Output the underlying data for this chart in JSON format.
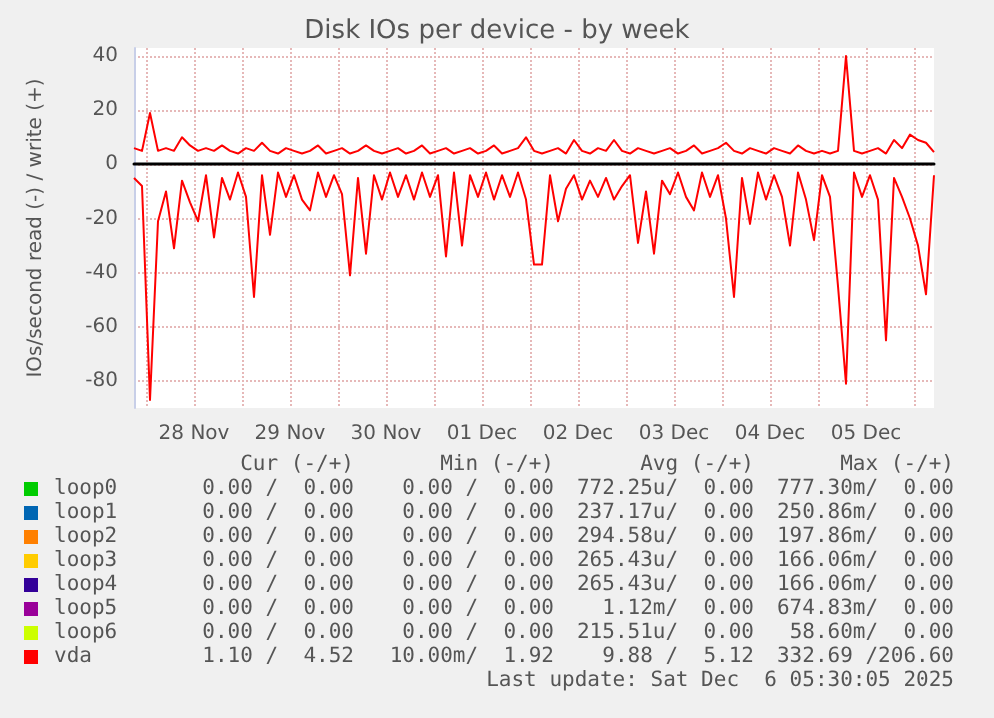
{
  "chart_data": {
    "type": "line",
    "title": "Disk IOs per device - by week",
    "ylabel": "IOs/second read (-) / write (+)",
    "x": [
      "2025-11-27T21:00",
      "2025-11-27T23:00",
      "2025-11-28T01:00",
      "2025-11-28T03:00",
      "2025-11-28T05:00",
      "2025-11-28T07:00",
      "2025-11-28T09:00",
      "2025-11-28T11:00",
      "2025-11-28T13:00",
      "2025-11-28T15:00",
      "2025-11-28T17:00",
      "2025-11-28T19:00",
      "2025-11-28T21:00",
      "2025-11-28T23:00",
      "2025-11-29T01:00",
      "2025-11-29T03:00",
      "2025-11-29T05:00",
      "2025-11-29T07:00",
      "2025-11-29T09:00",
      "2025-11-29T11:00",
      "2025-11-29T13:00",
      "2025-11-29T15:00",
      "2025-11-29T17:00",
      "2025-11-29T19:00",
      "2025-11-29T21:00",
      "2025-11-29T23:00",
      "2025-11-30T01:00",
      "2025-11-30T03:00",
      "2025-11-30T05:00",
      "2025-11-30T07:00",
      "2025-11-30T09:00",
      "2025-11-30T11:00",
      "2025-11-30T13:00",
      "2025-11-30T15:00",
      "2025-11-30T17:00",
      "2025-11-30T19:00",
      "2025-11-30T21:00",
      "2025-11-30T23:00",
      "2025-12-01T01:00",
      "2025-12-01T03:00",
      "2025-12-01T05:00",
      "2025-12-01T07:00",
      "2025-12-01T09:00",
      "2025-12-01T11:00",
      "2025-12-01T13:00",
      "2025-12-01T15:00",
      "2025-12-01T17:00",
      "2025-12-01T19:00",
      "2025-12-01T21:00",
      "2025-12-01T23:00",
      "2025-12-02T01:00",
      "2025-12-02T03:00",
      "2025-12-02T05:00",
      "2025-12-02T07:00",
      "2025-12-02T09:00",
      "2025-12-02T11:00",
      "2025-12-02T13:00",
      "2025-12-02T15:00",
      "2025-12-02T17:00",
      "2025-12-02T19:00",
      "2025-12-02T21:00",
      "2025-12-02T23:00",
      "2025-12-03T01:00",
      "2025-12-03T03:00",
      "2025-12-03T05:00",
      "2025-12-03T07:00",
      "2025-12-03T09:00",
      "2025-12-03T11:00",
      "2025-12-03T13:00",
      "2025-12-03T15:00",
      "2025-12-03T17:00",
      "2025-12-03T19:00",
      "2025-12-03T21:00",
      "2025-12-03T23:00",
      "2025-12-04T01:00",
      "2025-12-04T03:00",
      "2025-12-04T05:00",
      "2025-12-04T07:00",
      "2025-12-04T09:00",
      "2025-12-04T11:00",
      "2025-12-04T13:00",
      "2025-12-04T15:00",
      "2025-12-04T17:00",
      "2025-12-04T19:00",
      "2025-12-04T21:00",
      "2025-12-04T23:00",
      "2025-12-05T01:00",
      "2025-12-05T03:00",
      "2025-12-05T05:00",
      "2025-12-05T07:00",
      "2025-12-05T09:00",
      "2025-12-05T11:00",
      "2025-12-05T13:00",
      "2025-12-05T15:00",
      "2025-12-05T17:00",
      "2025-12-05T19:00",
      "2025-12-05T21:00",
      "2025-12-05T23:00",
      "2025-12-06T01:00",
      "2025-12-06T03:00",
      "2025-12-06T05:00"
    ],
    "series": [
      {
        "name": "loop0",
        "color": "#00cc00",
        "values": [
          null,
          null,
          null,
          null,
          null,
          null,
          null,
          null,
          null,
          null,
          null,
          null,
          null,
          null,
          null,
          null,
          null,
          null,
          null,
          null,
          null,
          null,
          null,
          null,
          null,
          null,
          null,
          null,
          null,
          null,
          null,
          null,
          null,
          null,
          null,
          null,
          null,
          null,
          null,
          null,
          null,
          null,
          null,
          null,
          null,
          null,
          null,
          null,
          null,
          null,
          null,
          null,
          null,
          null,
          null,
          null,
          null,
          null,
          null,
          null,
          null,
          null,
          null,
          null,
          null,
          null,
          null,
          null,
          null,
          null,
          null,
          null,
          null,
          null,
          null,
          null,
          null,
          null,
          null,
          null,
          null,
          null,
          null,
          null,
          null,
          null,
          null,
          null,
          null,
          null,
          null,
          null,
          null,
          null,
          null,
          null,
          null,
          null,
          null,
          null,
          null
        ]
      },
      {
        "name": "loop1",
        "color": "#0066b3",
        "values": [
          null,
          null,
          null,
          null,
          null,
          null,
          null,
          null,
          null,
          null,
          null,
          null,
          null,
          null,
          null,
          null,
          null,
          null,
          null,
          null,
          null,
          null,
          null,
          null,
          null,
          null,
          null,
          null,
          null,
          null,
          null,
          null,
          null,
          null,
          null,
          null,
          null,
          null,
          null,
          null,
          null,
          null,
          null,
          null,
          null,
          null,
          null,
          null,
          null,
          null,
          null,
          null,
          null,
          null,
          null,
          null,
          null,
          null,
          null,
          null,
          null,
          null,
          null,
          null,
          null,
          null,
          null,
          null,
          null,
          null,
          null,
          null,
          null,
          null,
          null,
          null,
          null,
          null,
          null,
          null,
          null,
          null,
          null,
          null,
          null,
          null,
          null,
          null,
          null,
          null,
          null,
          null,
          null,
          null,
          null,
          null,
          null,
          null,
          null,
          null,
          null
        ]
      },
      {
        "name": "loop2",
        "color": "#ff8000",
        "values": [
          null,
          null,
          null,
          null,
          null,
          null,
          null,
          null,
          null,
          null,
          null,
          null,
          null,
          null,
          null,
          null,
          null,
          null,
          null,
          null,
          null,
          null,
          null,
          null,
          null,
          null,
          null,
          null,
          null,
          null,
          null,
          null,
          null,
          null,
          null,
          null,
          null,
          null,
          null,
          null,
          null,
          null,
          null,
          null,
          null,
          null,
          null,
          null,
          null,
          null,
          null,
          null,
          null,
          null,
          null,
          null,
          null,
          null,
          null,
          null,
          null,
          null,
          null,
          null,
          null,
          null,
          null,
          null,
          null,
          null,
          null,
          null,
          null,
          null,
          null,
          null,
          null,
          null,
          null,
          null,
          null,
          null,
          null,
          null,
          null,
          null,
          null,
          null,
          null,
          null,
          null,
          null,
          null,
          null,
          null,
          null,
          null,
          null,
          null,
          null,
          null
        ]
      },
      {
        "name": "loop3",
        "color": "#ffcc00",
        "values": [
          null,
          null,
          null,
          null,
          null,
          null,
          null,
          null,
          null,
          null,
          null,
          null,
          null,
          null,
          null,
          null,
          null,
          null,
          null,
          null,
          null,
          null,
          null,
          null,
          null,
          null,
          null,
          null,
          null,
          null,
          null,
          null,
          null,
          null,
          null,
          null,
          null,
          null,
          null,
          null,
          null,
          null,
          null,
          null,
          null,
          null,
          null,
          null,
          null,
          null,
          null,
          null,
          null,
          null,
          null,
          null,
          null,
          null,
          null,
          null,
          null,
          null,
          null,
          null,
          null,
          null,
          null,
          null,
          null,
          null,
          null,
          null,
          null,
          null,
          null,
          null,
          null,
          null,
          null,
          null,
          null,
          null,
          null,
          null,
          null,
          null,
          null,
          null,
          null,
          null,
          null,
          null,
          null,
          null,
          null,
          null,
          null,
          null,
          null,
          null,
          null
        ]
      },
      {
        "name": "loop4",
        "color": "#330099",
        "values": [
          null,
          null,
          null,
          null,
          null,
          null,
          null,
          null,
          null,
          null,
          null,
          null,
          null,
          null,
          null,
          null,
          null,
          null,
          null,
          null,
          null,
          null,
          null,
          null,
          null,
          null,
          null,
          null,
          null,
          null,
          null,
          null,
          null,
          null,
          null,
          null,
          null,
          null,
          null,
          null,
          null,
          null,
          null,
          null,
          null,
          null,
          null,
          null,
          null,
          null,
          null,
          null,
          null,
          null,
          null,
          null,
          null,
          null,
          null,
          null,
          null,
          null,
          null,
          null,
          null,
          null,
          null,
          null,
          null,
          null,
          null,
          null,
          null,
          null,
          null,
          null,
          null,
          null,
          null,
          null,
          null,
          null,
          null,
          null,
          null,
          null,
          null,
          null,
          null,
          null,
          null,
          null,
          null,
          null,
          null,
          null,
          null,
          null,
          null,
          null,
          null
        ]
      },
      {
        "name": "loop5",
        "color": "#990099",
        "values": [
          null,
          null,
          null,
          null,
          null,
          null,
          null,
          null,
          null,
          null,
          null,
          null,
          null,
          null,
          null,
          null,
          null,
          null,
          null,
          null,
          null,
          null,
          null,
          null,
          null,
          null,
          null,
          null,
          null,
          null,
          null,
          null,
          null,
          null,
          null,
          null,
          null,
          null,
          null,
          null,
          null,
          null,
          null,
          null,
          null,
          null,
          null,
          null,
          null,
          null,
          null,
          null,
          null,
          null,
          null,
          null,
          null,
          null,
          null,
          null,
          null,
          null,
          null,
          null,
          null,
          null,
          null,
          null,
          null,
          null,
          null,
          null,
          null,
          null,
          null,
          null,
          null,
          null,
          null,
          null,
          null,
          null,
          null,
          null,
          null,
          null,
          null,
          null,
          null,
          null,
          null,
          null,
          null,
          null,
          null,
          null,
          null,
          null,
          null,
          null,
          null
        ]
      },
      {
        "name": "loop6",
        "color": "#ccff00",
        "values": [
          null,
          null,
          null,
          null,
          null,
          null,
          null,
          null,
          null,
          null,
          null,
          null,
          null,
          null,
          null,
          null,
          null,
          null,
          null,
          null,
          null,
          null,
          null,
          null,
          null,
          null,
          null,
          null,
          null,
          null,
          null,
          null,
          null,
          null,
          null,
          null,
          null,
          null,
          null,
          null,
          null,
          null,
          null,
          null,
          null,
          null,
          null,
          null,
          null,
          null,
          null,
          null,
          null,
          null,
          null,
          null,
          null,
          null,
          null,
          null,
          null,
          null,
          null,
          null,
          null,
          null,
          null,
          null,
          null,
          null,
          null,
          null,
          null,
          null,
          null,
          null,
          null,
          null,
          null,
          null,
          null,
          null,
          null,
          null,
          null,
          null,
          null,
          null,
          null,
          null,
          null,
          null,
          null,
          null,
          null,
          null,
          null,
          null,
          null,
          null,
          null
        ]
      },
      {
        "name": "vda",
        "color": "#ff0000",
        "values": [
          6,
          5,
          19,
          5,
          6,
          5,
          10,
          7,
          5,
          6,
          5,
          7,
          5,
          4,
          6,
          5,
          8,
          5,
          4,
          6,
          5,
          4,
          5,
          7,
          4,
          5,
          6,
          4,
          5,
          7,
          5,
          4,
          5,
          6,
          4,
          5,
          7,
          4,
          5,
          6,
          4,
          5,
          6,
          4,
          5,
          7,
          4,
          5,
          6,
          10,
          5,
          4,
          5,
          6,
          4,
          9,
          5,
          4,
          6,
          5,
          9,
          5,
          4,
          6,
          5,
          4,
          5,
          6,
          4,
          5,
          7,
          4,
          5,
          6,
          8,
          5,
          4,
          6,
          5,
          4,
          6,
          5,
          4,
          7,
          5,
          4,
          5,
          4,
          5,
          40,
          5,
          4,
          5,
          6,
          4,
          9,
          6,
          11,
          9,
          8,
          4.5
        ]
      },
      {
        "color": "#ff0000",
        "values": [
          -5,
          -8,
          -87,
          -21,
          -10,
          -31,
          -6,
          -14,
          -21,
          -4,
          -27,
          -5,
          -13,
          -3,
          -12,
          -49,
          -4,
          -26,
          -3,
          -12,
          -4,
          -13,
          -17,
          -3,
          -12,
          -4,
          -11,
          -41,
          -5,
          -33,
          -4,
          -13,
          -3,
          -12,
          -4,
          -13,
          -3,
          -12,
          -4,
          -34,
          -3,
          -30,
          -4,
          -12,
          -3,
          -13,
          -4,
          -12,
          -3,
          -13,
          -37,
          -37,
          -4,
          -21,
          -9,
          -4,
          -13,
          -6,
          -12,
          -5,
          -13,
          -8,
          -4,
          -29,
          -10,
          -33,
          -6,
          -11,
          -3,
          -12,
          -17,
          -3,
          -12,
          -4,
          -20,
          -49,
          -5,
          -22,
          -3,
          -13,
          -4,
          -12,
          -30,
          -3,
          -13,
          -28,
          -4,
          -12,
          -45,
          -81,
          -3,
          -12,
          -4,
          -13,
          -65,
          -5,
          -12,
          -20,
          -30,
          -48,
          -4
        ]
      }
    ],
    "xlim": [
      "2025-11-27T21:00",
      "2025-12-06T05:00"
    ],
    "xticks": [
      {
        "value": "2025-11-28",
        "label": null
      },
      {
        "value": "2025-11-28T12:00",
        "label": "28 Nov"
      },
      {
        "value": "2025-11-29",
        "label": null
      },
      {
        "value": "2025-11-29T12:00",
        "label": "29 Nov"
      },
      {
        "value": "2025-11-30",
        "label": null
      },
      {
        "value": "2025-11-30T12:00",
        "label": "30 Nov"
      },
      {
        "value": "2025-12-01",
        "label": null
      },
      {
        "value": "2025-12-01T12:00",
        "label": "01 Dec"
      },
      {
        "value": "2025-12-02",
        "label": null
      },
      {
        "value": "2025-12-02T12:00",
        "label": "02 Dec"
      },
      {
        "value": "2025-12-03",
        "label": null
      },
      {
        "value": "2025-12-03T12:00",
        "label": "03 Dec"
      },
      {
        "value": "2025-12-04",
        "label": null
      },
      {
        "value": "2025-12-04T12:00",
        "label": "04 Dec"
      },
      {
        "value": "2025-12-05",
        "label": null
      },
      {
        "value": "2025-12-05T12:00",
        "label": "05 Dec"
      },
      {
        "value": "2025-12-06",
        "label": null
      }
    ],
    "ylim": [
      -90,
      43
    ],
    "yticks": [
      -80,
      -60,
      -40,
      -20,
      0,
      20,
      40
    ],
    "grid": true,
    "legend": "bottom",
    "annotations": [
      "Cur (-/+)",
      "Min (-/+)",
      "Avg (-/+)",
      "Max (-/+)",
      "0.00 /  0.00",
      "0.00 /  0.00",
      "772.25u/  0.00",
      "777.30m/  0.00",
      "0.00 /  0.00",
      "0.00 /  0.00",
      "237.17u/  0.00",
      "250.86m/  0.00",
      "0.00 /  0.00",
      "0.00 /  0.00",
      "294.58u/  0.00",
      "197.86m/  0.00",
      "0.00 /  0.00",
      "0.00 /  0.00",
      "265.43u/  0.00",
      "166.06m/  0.00",
      "0.00 /  0.00",
      "0.00 /  0.00",
      "265.43u/  0.00",
      "166.06m/  0.00",
      "0.00 /  0.00",
      "0.00 /  0.00",
      "1.12m/  0.00",
      "674.83m/  0.00",
      "0.00 /  0.00",
      "0.00 /  0.00",
      "215.51u/  0.00",
      "58.60m/  0.00",
      "1.10 /  4.52",
      "10.00m/  1.92",
      "9.88 /  5.12",
      "332.69 /206.60",
      "Last update: Sat Dec  6 05:30:05 2025"
    ]
  }
}
